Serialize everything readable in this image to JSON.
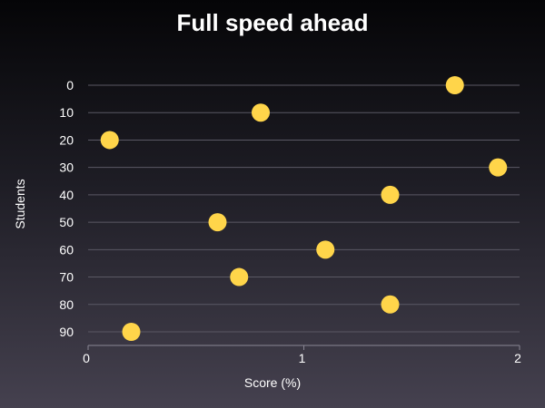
{
  "chart_data": {
    "type": "scatter",
    "title": "Full speed ahead",
    "xlabel": "Score (%)",
    "ylabel": "Students",
    "xlim": [
      0,
      2
    ],
    "ylim": [
      0,
      90
    ],
    "y_inverted": true,
    "x_ticks": [
      "0",
      "1",
      "2"
    ],
    "y_ticks": [
      "0",
      "10",
      "20",
      "30",
      "40",
      "50",
      "60",
      "70",
      "80",
      "90"
    ],
    "grid": "horizontal",
    "point_color": "#ffd54a",
    "points": [
      {
        "x": 1.7,
        "y": 0
      },
      {
        "x": 0.8,
        "y": 10
      },
      {
        "x": 0.1,
        "y": 20
      },
      {
        "x": 1.9,
        "y": 30
      },
      {
        "x": 1.4,
        "y": 40
      },
      {
        "x": 0.6,
        "y": 50
      },
      {
        "x": 1.1,
        "y": 60
      },
      {
        "x": 0.7,
        "y": 70
      },
      {
        "x": 1.4,
        "y": 80
      },
      {
        "x": 0.2,
        "y": 90
      }
    ]
  }
}
